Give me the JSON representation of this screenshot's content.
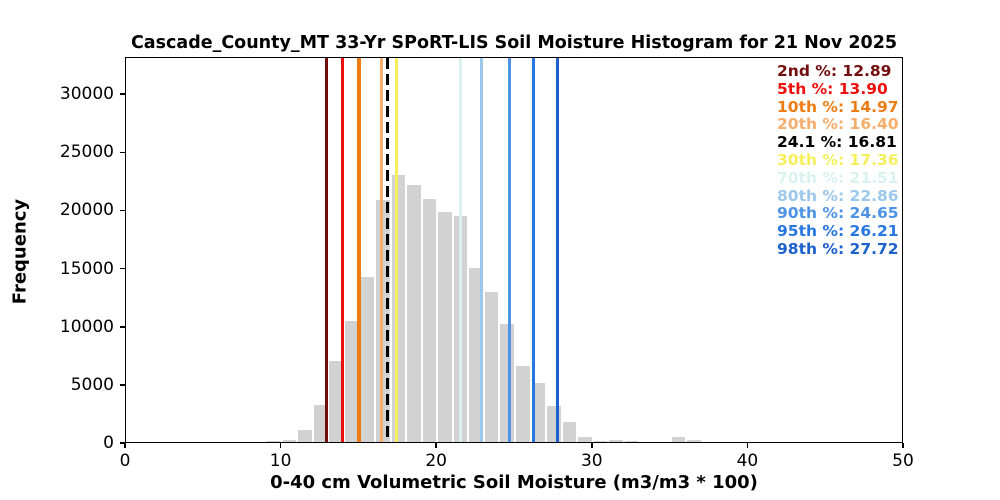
{
  "title": "Cascade_County_MT 33-Yr SPoRT-LIS Soil Moisture Histogram for 21 Nov 2025",
  "axes": {
    "xlabel": "0-40 cm Volumetric Soil Moisture (m3/m3 * 100)",
    "ylabel": "Frequency",
    "xlim": [
      0,
      50
    ],
    "ylim": [
      0,
      33200
    ],
    "x_ticks": [
      0,
      10,
      20,
      30,
      40,
      50
    ],
    "y_ticks": [
      0,
      5000,
      10000,
      15000,
      20000,
      25000,
      30000
    ],
    "grid": false
  },
  "chart_data": {
    "type": "bar",
    "subtype": "histogram",
    "bar_color": "#d2d2d2",
    "bin_width": 1,
    "bin_starts": [
      9,
      10,
      11,
      12,
      13,
      14,
      15,
      16,
      17,
      18,
      19,
      20,
      21,
      22,
      23,
      24,
      25,
      26,
      27,
      28,
      29,
      30,
      31,
      32,
      33,
      34,
      35,
      36
    ],
    "values": [
      90,
      210,
      1000,
      3150,
      6950,
      10400,
      14200,
      20780,
      22970,
      22110,
      20900,
      19780,
      19430,
      14960,
      12890,
      10160,
      6510,
      5060,
      3140,
      1700,
      460,
      120,
      150,
      80,
      0,
      0,
      460,
      180
    ],
    "percentile_lines": [
      {
        "label": "2nd %",
        "value": 12.89,
        "color": "#730d0d",
        "style": "solid"
      },
      {
        "label": "5th %",
        "value": 13.9,
        "color": "#ee100c",
        "style": "solid"
      },
      {
        "label": "10th %",
        "value": 14.97,
        "color": "#ec7d14",
        "style": "solid"
      },
      {
        "label": "20th %",
        "value": 16.4,
        "color": "#f5ae6c",
        "style": "solid"
      },
      {
        "label": "24.1 %",
        "value": 16.81,
        "color": "#000000",
        "style": "dashed"
      },
      {
        "label": "30th %",
        "value": 17.36,
        "color": "#f5ef5c",
        "style": "solid"
      },
      {
        "label": "70th %",
        "value": 21.51,
        "color": "#d9f2f0",
        "style": "solid"
      },
      {
        "label": "80th %",
        "value": 22.86,
        "color": "#9cc8ec",
        "style": "solid"
      },
      {
        "label": "90th %",
        "value": 24.65,
        "color": "#4d94e6",
        "style": "solid"
      },
      {
        "label": "95th %",
        "value": 26.21,
        "color": "#2777e0",
        "style": "solid"
      },
      {
        "label": "98th %",
        "value": 27.72,
        "color": "#1c61cc",
        "style": "solid"
      }
    ],
    "legend_position": "top-right"
  }
}
